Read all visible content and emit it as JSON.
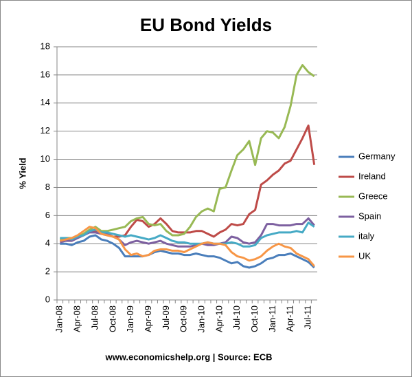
{
  "chart_data": {
    "type": "line",
    "title": "EU Bond Yields",
    "ylabel": "% Yield",
    "source": "www.economicshelp.org | Source: ECB",
    "categories": [
      "Jan-08",
      null,
      null,
      "Apr-08",
      null,
      null,
      "Jul-08",
      null,
      null,
      "Oct-08",
      null,
      null,
      "Jan-09",
      null,
      null,
      "Apr-09",
      null,
      null,
      "Jul-09",
      null,
      null,
      "Oct-09",
      null,
      null,
      "Jan-10",
      null,
      null,
      "Apr-10",
      null,
      null,
      "Jul-10",
      null,
      null,
      "Oct-10",
      null,
      null,
      "Jan-11",
      null,
      null,
      "Apr-11",
      null,
      null,
      "Jul-11",
      null
    ],
    "series": [
      {
        "name": "Germany",
        "color": "#4a7ebb",
        "values": [
          4.0,
          4.0,
          3.9,
          4.1,
          4.2,
          4.5,
          4.6,
          4.3,
          4.2,
          4.0,
          3.7,
          3.1,
          3.1,
          3.1,
          3.1,
          3.2,
          3.4,
          3.5,
          3.4,
          3.3,
          3.3,
          3.2,
          3.2,
          3.3,
          3.2,
          3.1,
          3.1,
          3.0,
          2.8,
          2.6,
          2.7,
          2.4,
          2.3,
          2.4,
          2.6,
          2.9,
          3.0,
          3.2,
          3.2,
          3.3,
          3.1,
          2.9,
          2.7,
          2.3
        ]
      },
      {
        "name": "Ireland",
        "color": "#be4b48",
        "values": [
          4.2,
          4.3,
          4.3,
          4.5,
          4.6,
          4.9,
          4.9,
          4.7,
          4.6,
          4.5,
          4.5,
          4.6,
          5.2,
          5.7,
          5.6,
          5.2,
          5.4,
          5.8,
          5.4,
          4.9,
          4.8,
          4.8,
          4.8,
          4.9,
          4.9,
          4.7,
          4.5,
          4.8,
          5.0,
          5.4,
          5.3,
          5.4,
          6.1,
          6.4,
          8.2,
          8.5,
          8.9,
          9.2,
          9.7,
          9.9,
          10.7,
          11.5,
          12.4,
          9.6
        ]
      },
      {
        "name": "Greece",
        "color": "#98b954",
        "values": [
          4.3,
          4.4,
          4.4,
          4.5,
          4.7,
          5.0,
          5.2,
          4.9,
          4.9,
          5.0,
          5.1,
          5.2,
          5.6,
          5.8,
          5.9,
          5.4,
          5.3,
          5.4,
          4.9,
          4.6,
          4.6,
          4.7,
          5.2,
          5.9,
          6.3,
          6.5,
          6.3,
          7.9,
          8.0,
          9.2,
          10.3,
          10.7,
          11.3,
          9.6,
          11.5,
          12.0,
          11.9,
          11.5,
          12.3,
          13.8,
          16.0,
          16.7,
          16.2,
          15.9
        ]
      },
      {
        "name": "Spain",
        "color": "#7d60a0",
        "values": [
          4.1,
          4.2,
          4.2,
          4.4,
          4.6,
          4.8,
          4.8,
          4.7,
          4.7,
          4.5,
          4.3,
          3.9,
          4.1,
          4.2,
          4.1,
          4.0,
          4.1,
          4.2,
          4.0,
          3.9,
          3.8,
          3.8,
          3.8,
          3.9,
          4.0,
          3.9,
          3.9,
          4.0,
          4.1,
          4.5,
          4.4,
          4.1,
          4.0,
          4.1,
          4.6,
          5.4,
          5.4,
          5.3,
          5.3,
          5.3,
          5.4,
          5.4,
          5.8,
          5.3
        ]
      },
      {
        "name": "italy",
        "color": "#46aac5",
        "values": [
          4.4,
          4.4,
          4.3,
          4.5,
          4.6,
          4.9,
          5.0,
          4.8,
          4.8,
          4.7,
          4.6,
          4.5,
          4.6,
          4.5,
          4.4,
          4.3,
          4.4,
          4.6,
          4.4,
          4.2,
          4.1,
          4.1,
          4.0,
          4.0,
          4.0,
          4.1,
          4.0,
          4.0,
          4.0,
          4.1,
          4.0,
          3.8,
          3.8,
          3.9,
          4.4,
          4.6,
          4.7,
          4.8,
          4.8,
          4.8,
          4.9,
          4.8,
          5.5,
          5.2
        ]
      },
      {
        "name": "UK",
        "color": "#f79646",
        "values": [
          4.2,
          4.3,
          4.4,
          4.6,
          4.9,
          5.2,
          5.1,
          4.7,
          4.6,
          4.5,
          4.3,
          3.6,
          3.2,
          3.3,
          3.1,
          3.2,
          3.5,
          3.6,
          3.6,
          3.5,
          3.5,
          3.4,
          3.6,
          3.8,
          4.0,
          4.1,
          4.0,
          4.0,
          3.9,
          3.4,
          3.1,
          3.0,
          2.8,
          2.9,
          3.1,
          3.5,
          3.8,
          4.0,
          3.8,
          3.7,
          3.3,
          3.1,
          2.9,
          2.4
        ]
      }
    ],
    "ylim": [
      0,
      18
    ],
    "yticks": [
      0,
      2,
      4,
      6,
      8,
      10,
      12,
      14,
      16,
      18
    ],
    "grid": true,
    "legend": "right"
  }
}
